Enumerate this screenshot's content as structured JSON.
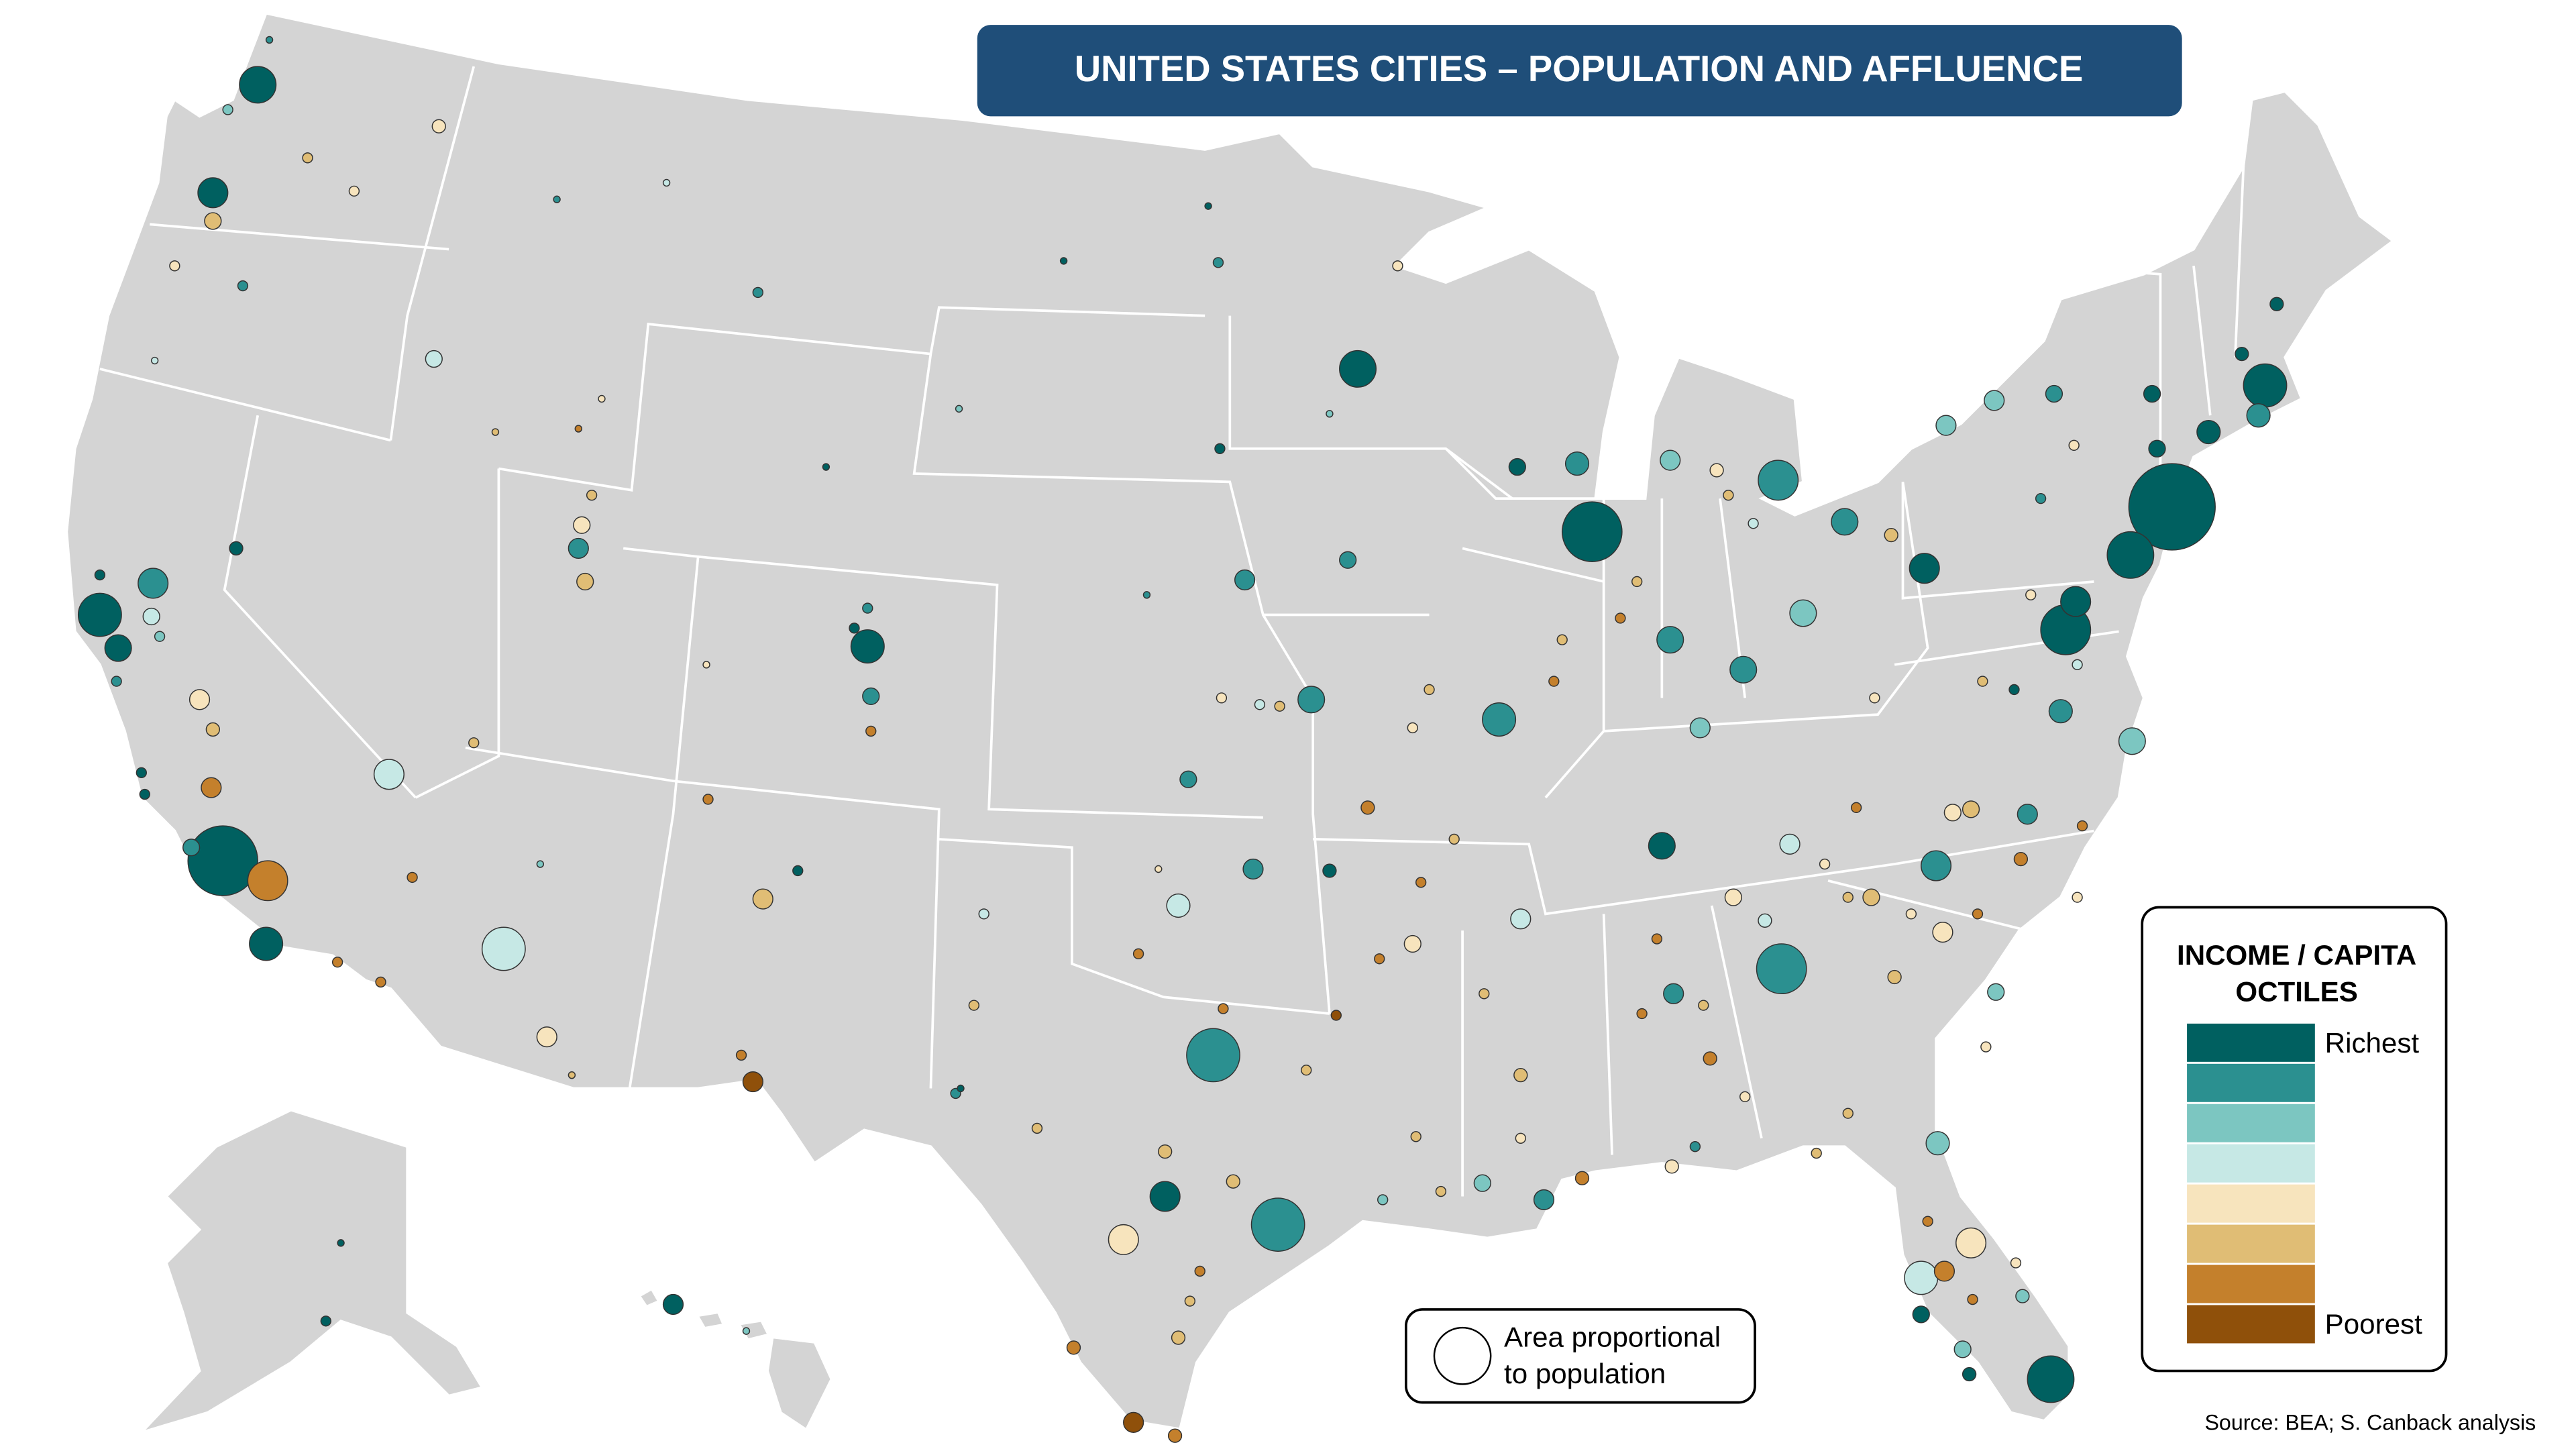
{
  "header": {
    "title": "UNITED STATES CITIES – POPULATION AND AFFLUENCE"
  },
  "legend": {
    "title": [
      "INCOME / CAPITA",
      "OCTILES"
    ],
    "colors": [
      "#006060",
      "#2b9090",
      "#7cc6c1",
      "#c6e8e5",
      "#f7e4bd",
      "#e0bd75",
      "#c4802c",
      "#8f500a"
    ],
    "top_label": "Richest",
    "bottom_label": "Poorest"
  },
  "size_note": [
    "Area proportional",
    "to population"
  ],
  "source": "Source: BEA; S. Canback analysis"
}
